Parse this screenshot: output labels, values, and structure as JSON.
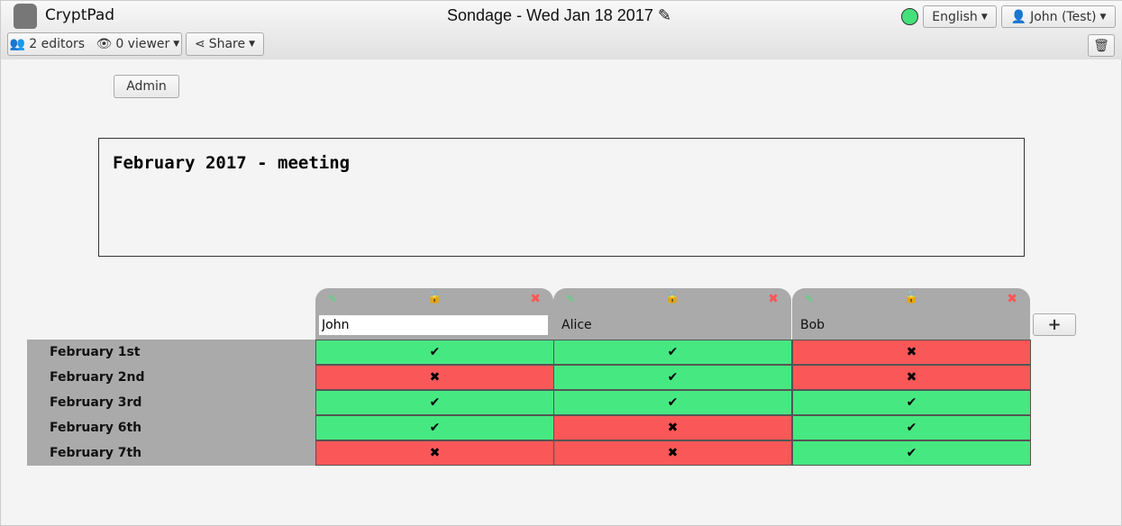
{
  "app": {
    "name": "CryptPad",
    "title": "Sondage - Wed Jan 18 2017"
  },
  "toolbar": {
    "editors": "2 editors",
    "viewers": "0 viewer",
    "share": "Share",
    "language": "English",
    "user": "John (Test)",
    "status_color": "#46e07a"
  },
  "admin_label": "Admin",
  "poll_title": "February 2017 - meeting",
  "columns": [
    {
      "name": "John",
      "locked": false,
      "editing": true
    },
    {
      "name": "Alice",
      "locked": true,
      "editing": false
    },
    {
      "name": "Bob",
      "locked": true,
      "editing": false
    }
  ],
  "rows": [
    "February 1st",
    "February 2nd",
    "February 3rd",
    "February 6th",
    "February 7th"
  ],
  "votes": [
    [
      true,
      true,
      false
    ],
    [
      false,
      true,
      false
    ],
    [
      true,
      true,
      true
    ],
    [
      true,
      false,
      true
    ],
    [
      false,
      false,
      true
    ]
  ],
  "symbols": {
    "yes": "✔",
    "no": "✖",
    "add": "+"
  },
  "colors": {
    "yes": "#46e881",
    "no": "#fa5858"
  }
}
